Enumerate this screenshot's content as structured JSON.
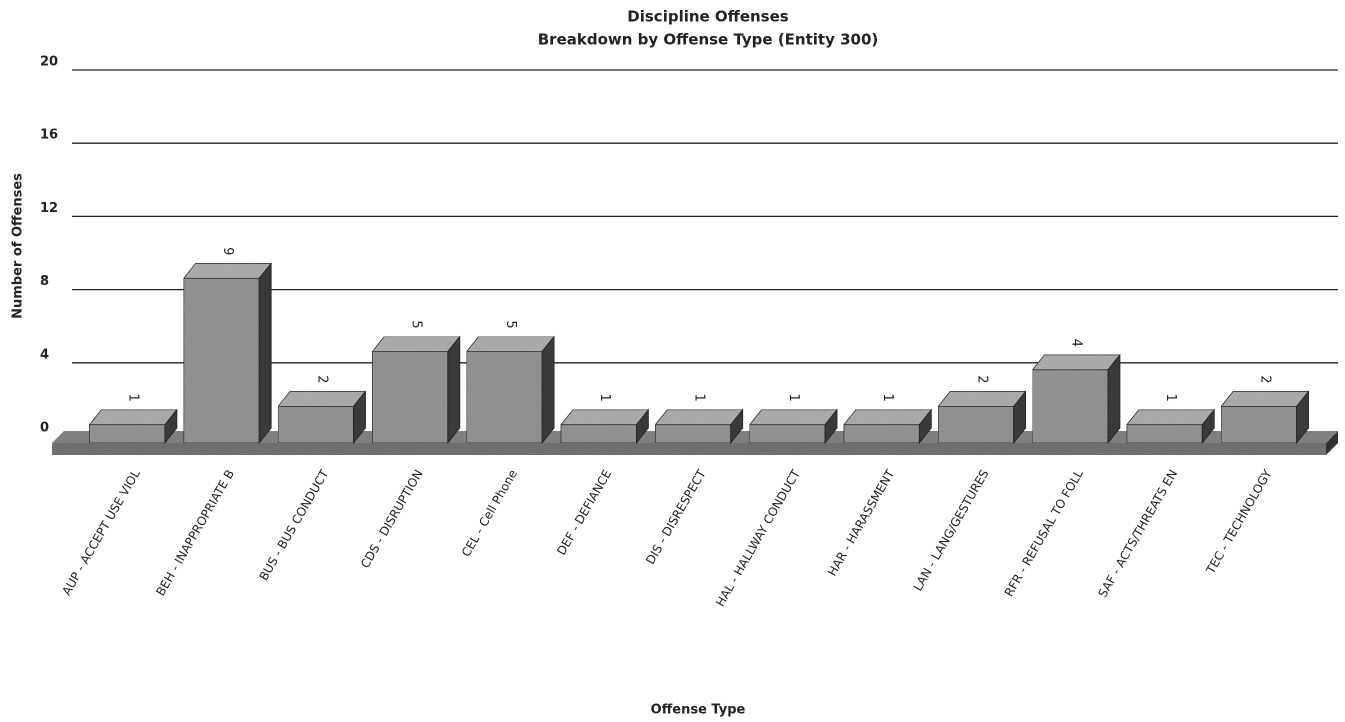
{
  "chart_data": {
    "type": "bar3d",
    "title": "Discipline Offenses",
    "subtitle": "Breakdown by Offense Type (Entity 300)",
    "x_label": "Offense Type",
    "y_label": "Number of Offenses",
    "categories": [
      "AUP - ACCEPT USE VIOL",
      "BEH - INAPPROPRIATE B",
      "BUS - BUS CONDUCT",
      "CDS - DISRUPTION",
      "CEL - Cell Phone",
      "DEF - DEFIANCE",
      "DIS - DISRESPECT",
      "HAL - HALLWAY CONDUCT",
      "HAR - HARASSMENT",
      "LAN - LANG/GESTURES",
      "RFR - REFUSAL TO FOLL",
      "SAF - ACTS/THREATS EN",
      "TEC - TECHNOLOGY"
    ],
    "values": [
      1,
      9,
      2,
      5,
      5,
      1,
      1,
      1,
      1,
      2,
      4,
      1,
      2
    ],
    "color": "#9a9a9a",
    "ylim": [
      0,
      20
    ],
    "yticks": [
      0,
      4,
      8,
      12,
      16,
      20
    ],
    "grid": true
  }
}
